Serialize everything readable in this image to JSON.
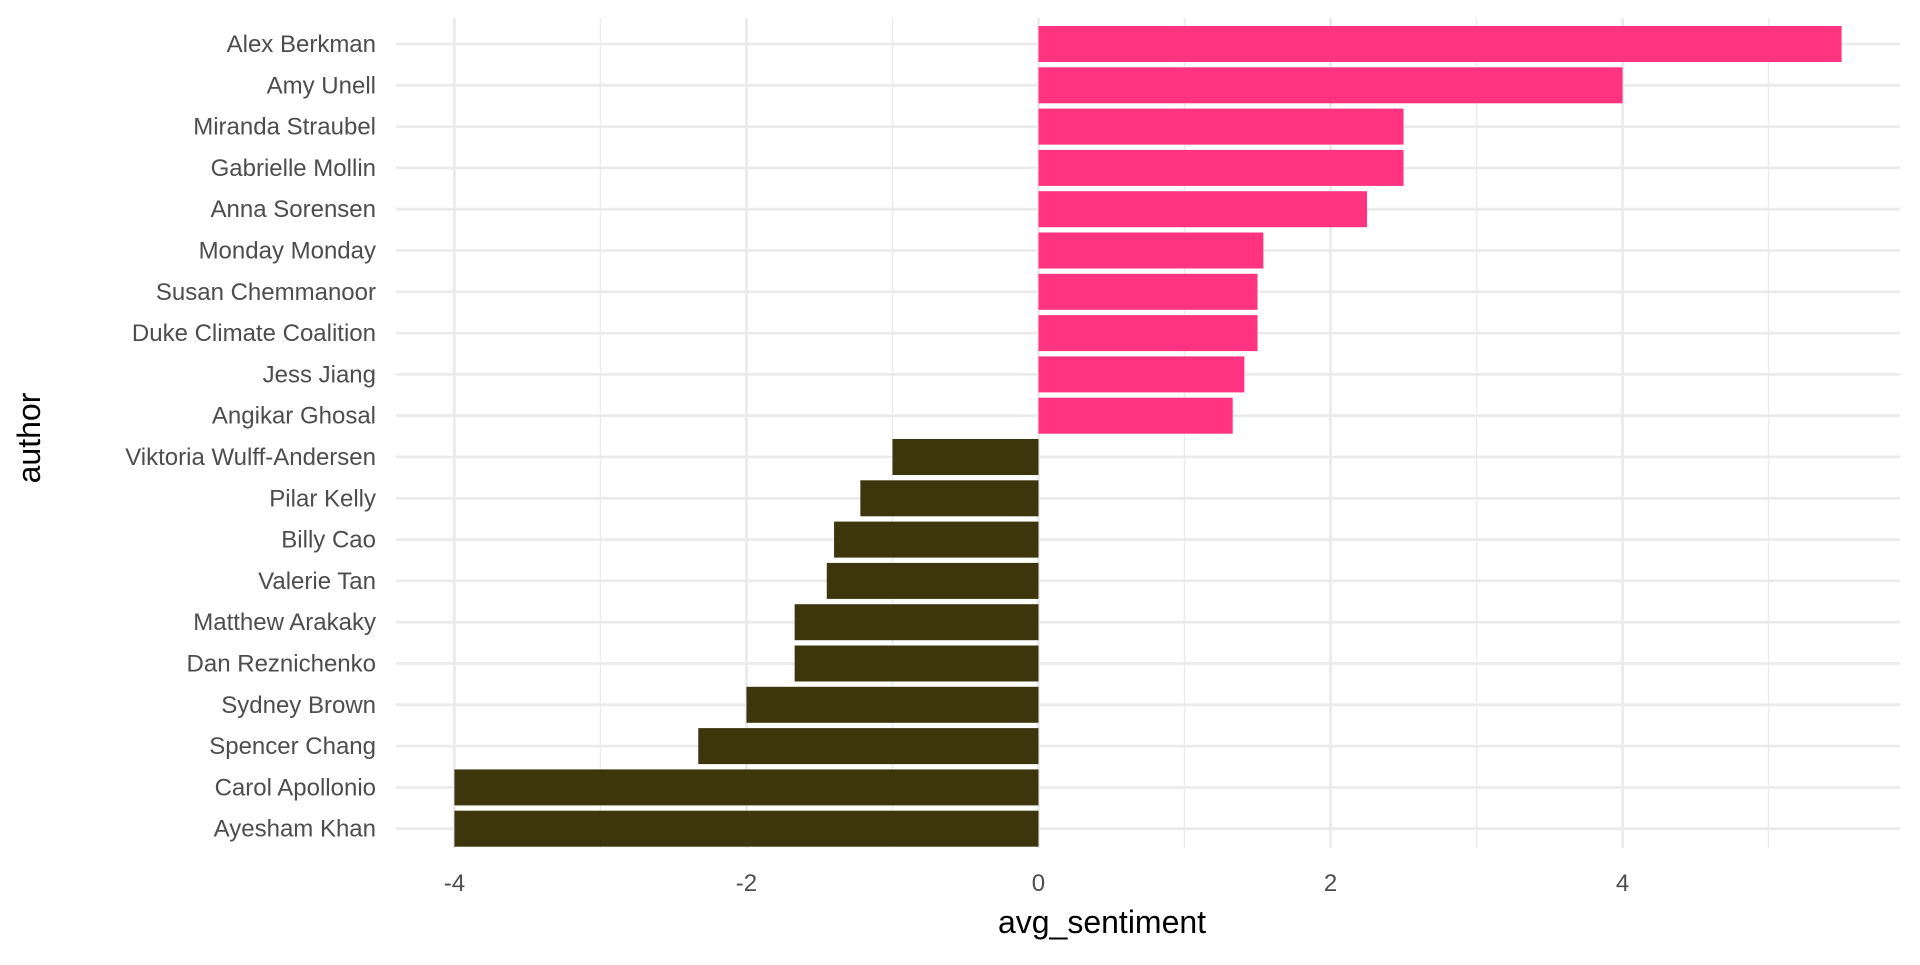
{
  "chart_data": {
    "type": "bar",
    "orientation": "horizontal",
    "xlabel": "avg_sentiment",
    "ylabel": "author",
    "xlim": [
      -4.4,
      5.9
    ],
    "xticks": [
      -4,
      -2,
      0,
      2,
      4
    ],
    "grid": true,
    "legend": "none",
    "colors": {
      "positive": "#ff3380",
      "negative": "#3d350c",
      "grid": "#ebebeb"
    },
    "categories": [
      "Alex Berkman",
      "Amy Unell",
      "Miranda Straubel",
      "Gabrielle Mollin",
      "Anna Sorensen",
      "Monday Monday",
      "Susan Chemmanoor",
      "Duke Climate Coalition",
      "Jess Jiang",
      "Angikar Ghosal",
      "Viktoria Wulff-Andersen",
      "Pilar Kelly",
      "Billy Cao",
      "Valerie Tan",
      "Matthew Arakaky",
      "Dan Reznichenko",
      "Sydney Brown",
      "Spencer Chang",
      "Carol Apollonio",
      "Ayesham Khan"
    ],
    "values": [
      5.5,
      4.0,
      2.5,
      2.5,
      2.25,
      1.54,
      1.5,
      1.5,
      1.41,
      1.33,
      -1.0,
      -1.22,
      -1.4,
      -1.45,
      -1.67,
      -1.67,
      -2.0,
      -2.33,
      -4.0,
      -4.0
    ]
  }
}
